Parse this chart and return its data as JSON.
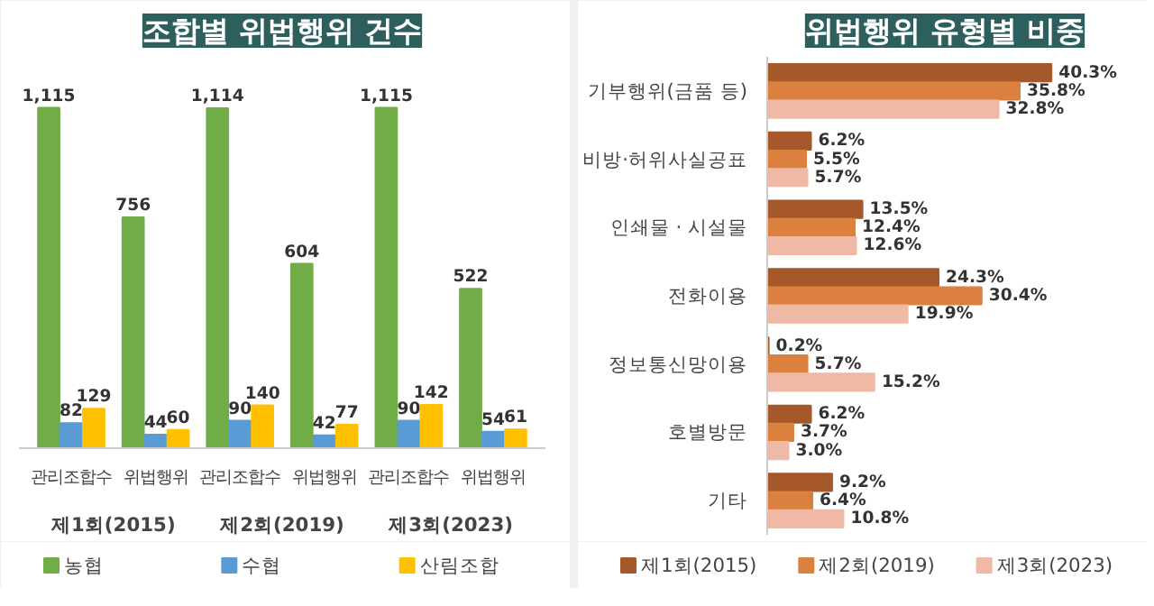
{
  "chart_data": [
    {
      "type": "bar",
      "title": "조합별 위법행위 건수",
      "categories": [
        "관리조합수",
        "위법행위",
        "관리조합수",
        "위법행위",
        "관리조합수",
        "위법행위"
      ],
      "annotations": [
        "제1회(2015)",
        "제2회(2019)",
        "제3회(2023)"
      ],
      "legend": "bottom",
      "grid": false,
      "series": [
        {
          "name": "농협",
          "color": "#70ad47",
          "values": [
            1115,
            756,
            1114,
            604,
            1115,
            522
          ],
          "value_labels": [
            "1,115",
            "756",
            "1,114",
            "604",
            "1,115",
            "522"
          ]
        },
        {
          "name": "수협",
          "color": "#5b9bd5",
          "values": [
            82,
            44,
            90,
            42,
            90,
            54
          ],
          "value_labels": [
            "82",
            "44",
            "90",
            "42",
            "90",
            "54"
          ]
        },
        {
          "name": "산림조합",
          "color": "#ffc000",
          "values": [
            129,
            60,
            140,
            77,
            142,
            61
          ],
          "value_labels": [
            "129",
            "60",
            "140",
            "77",
            "142",
            "61"
          ]
        }
      ]
    },
    {
      "type": "bar",
      "orientation": "horizontal",
      "title": "위법행위 유형별 비중",
      "categories": [
        "기부행위(금품 등)",
        "비방·허위사실공표",
        "인쇄물 · 시설물",
        "전화이용",
        "정보통신망이용",
        "호별방문",
        "기타"
      ],
      "legend": "bottom",
      "grid": false,
      "series": [
        {
          "name": "제1회(2015)",
          "color": "#a5582a",
          "values": [
            40.3,
            6.2,
            13.5,
            24.3,
            0.2,
            6.2,
            9.2
          ],
          "value_labels": [
            "40.3%",
            "6.2%",
            "13.5%",
            "24.3%",
            "0.2%",
            "6.2%",
            "9.2%"
          ]
        },
        {
          "name": "제2회(2019)",
          "color": "#dc8040",
          "values": [
            35.8,
            5.5,
            12.4,
            30.4,
            5.7,
            3.7,
            6.4
          ],
          "value_labels": [
            "35.8%",
            "5.5%",
            "12.4%",
            "30.4%",
            "5.7%",
            "3.7%",
            "6.4%"
          ]
        },
        {
          "name": "제3회(2023)",
          "color": "#efb9a6",
          "values": [
            32.8,
            5.7,
            12.6,
            19.9,
            15.2,
            3.0,
            10.8
          ],
          "value_labels": [
            "32.8%",
            "5.7%",
            "12.6%",
            "19.9%",
            "15.2%",
            "3.0%",
            "10.8%"
          ]
        }
      ]
    }
  ]
}
